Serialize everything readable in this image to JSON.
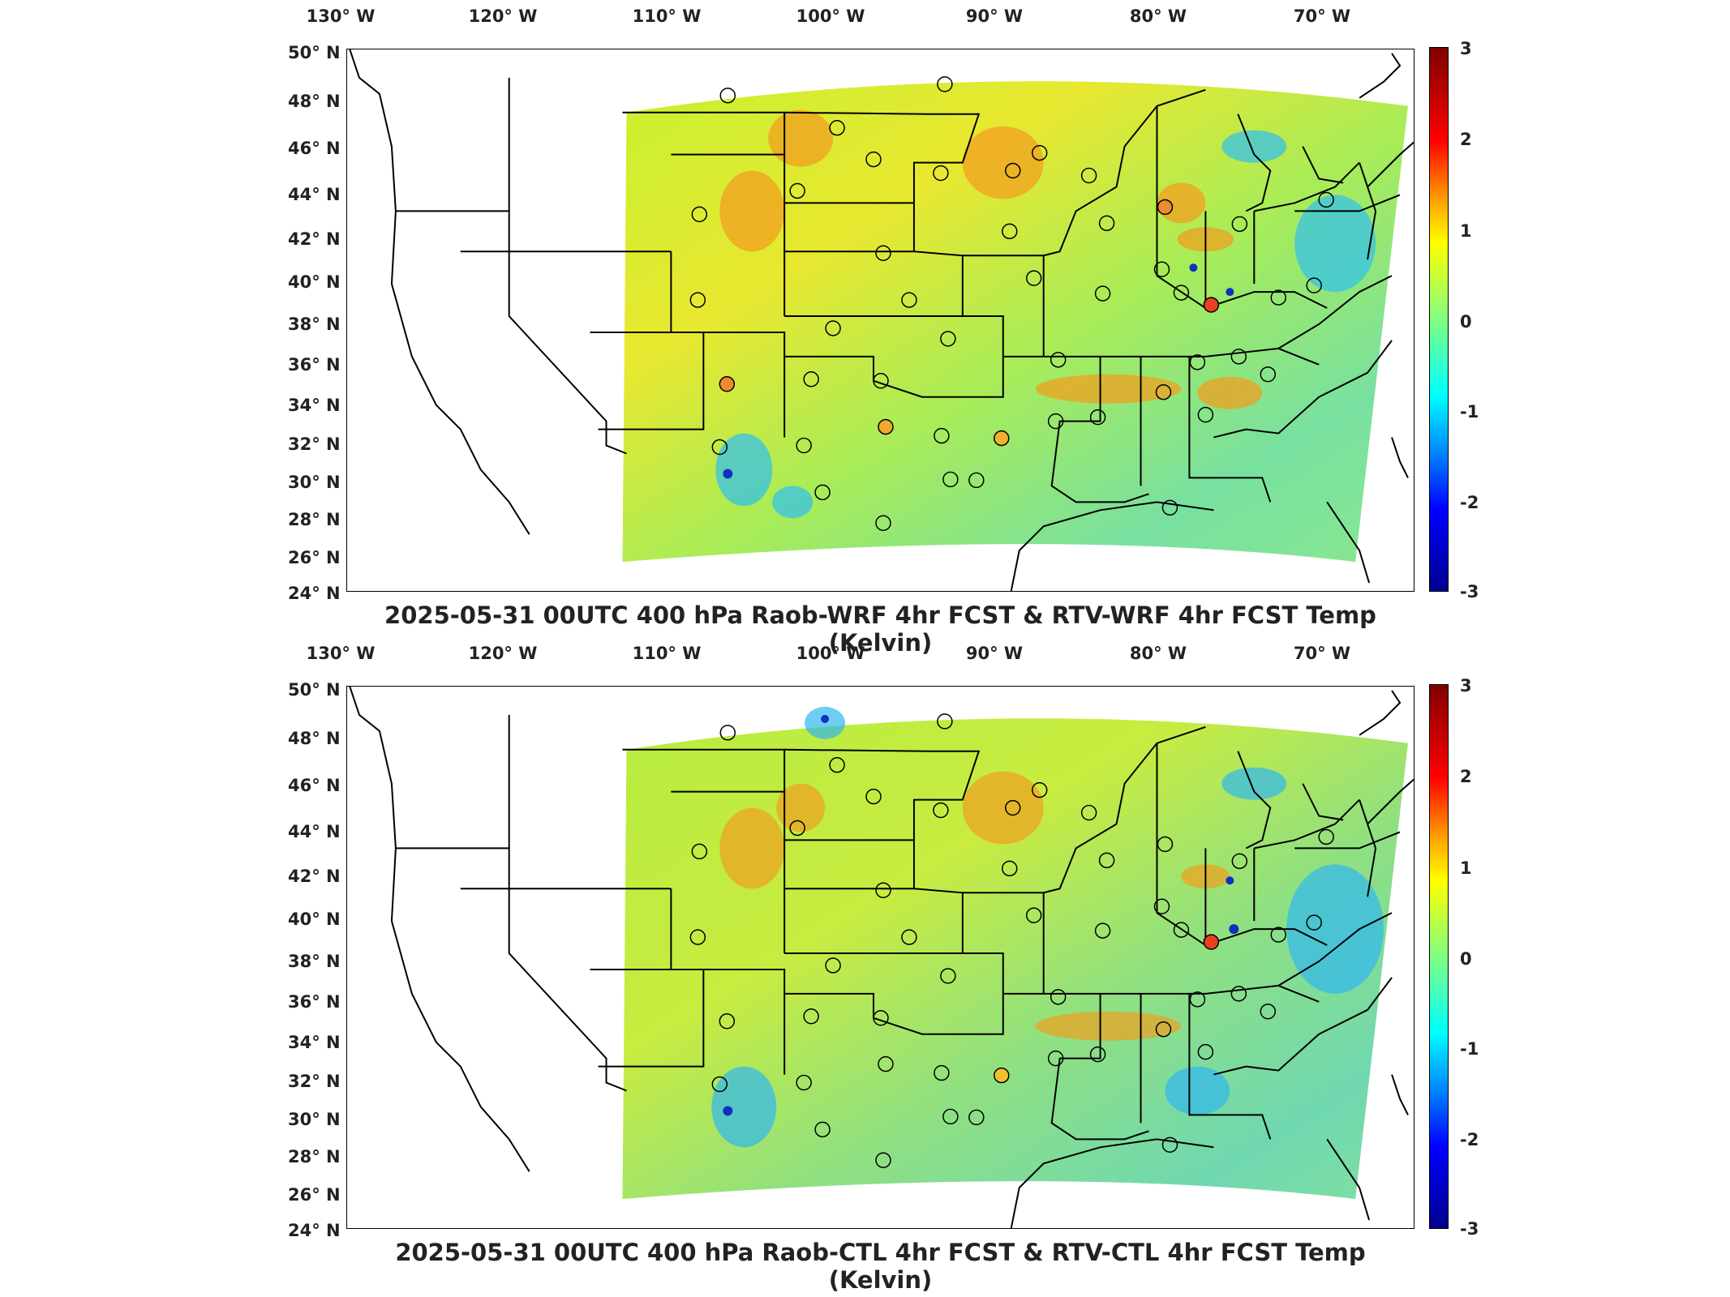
{
  "panels": [
    {
      "title": "2025-05-31 00UTC 400 hPa Raob-WRF 4hr FCST & RTV-WRF 4hr FCST Temp (Kelvin)"
    },
    {
      "title": "2025-05-31 00UTC 400 hPa Raob-CTL 4hr FCST & RTV-CTL 4hr FCST Temp (Kelvin)"
    }
  ],
  "axes": {
    "lon_labels": [
      "130° W",
      "120° W",
      "110° W",
      "100° W",
      "90° W",
      "80° W",
      "70° W"
    ],
    "lat_labels": [
      "50° N",
      "48° N",
      "46° N",
      "44° N",
      "42° N",
      "40° N",
      "38° N",
      "36° N",
      "34° N",
      "32° N",
      "30° N",
      "28° N",
      "26° N",
      "24° N"
    ]
  },
  "colorbar": {
    "ticks": [
      "3",
      "2",
      "1",
      "0",
      "-1",
      "-2",
      "-3"
    ],
    "min": -3,
    "max": 3,
    "unit": "Kelvin",
    "colormap": [
      "#00008f",
      "#0000ff",
      "#00ffff",
      "#80ff80",
      "#ffff00",
      "#ff0000",
      "#800000"
    ]
  },
  "colors": {
    "field_base": "#a8e84a",
    "state_lines": "#000000"
  }
}
